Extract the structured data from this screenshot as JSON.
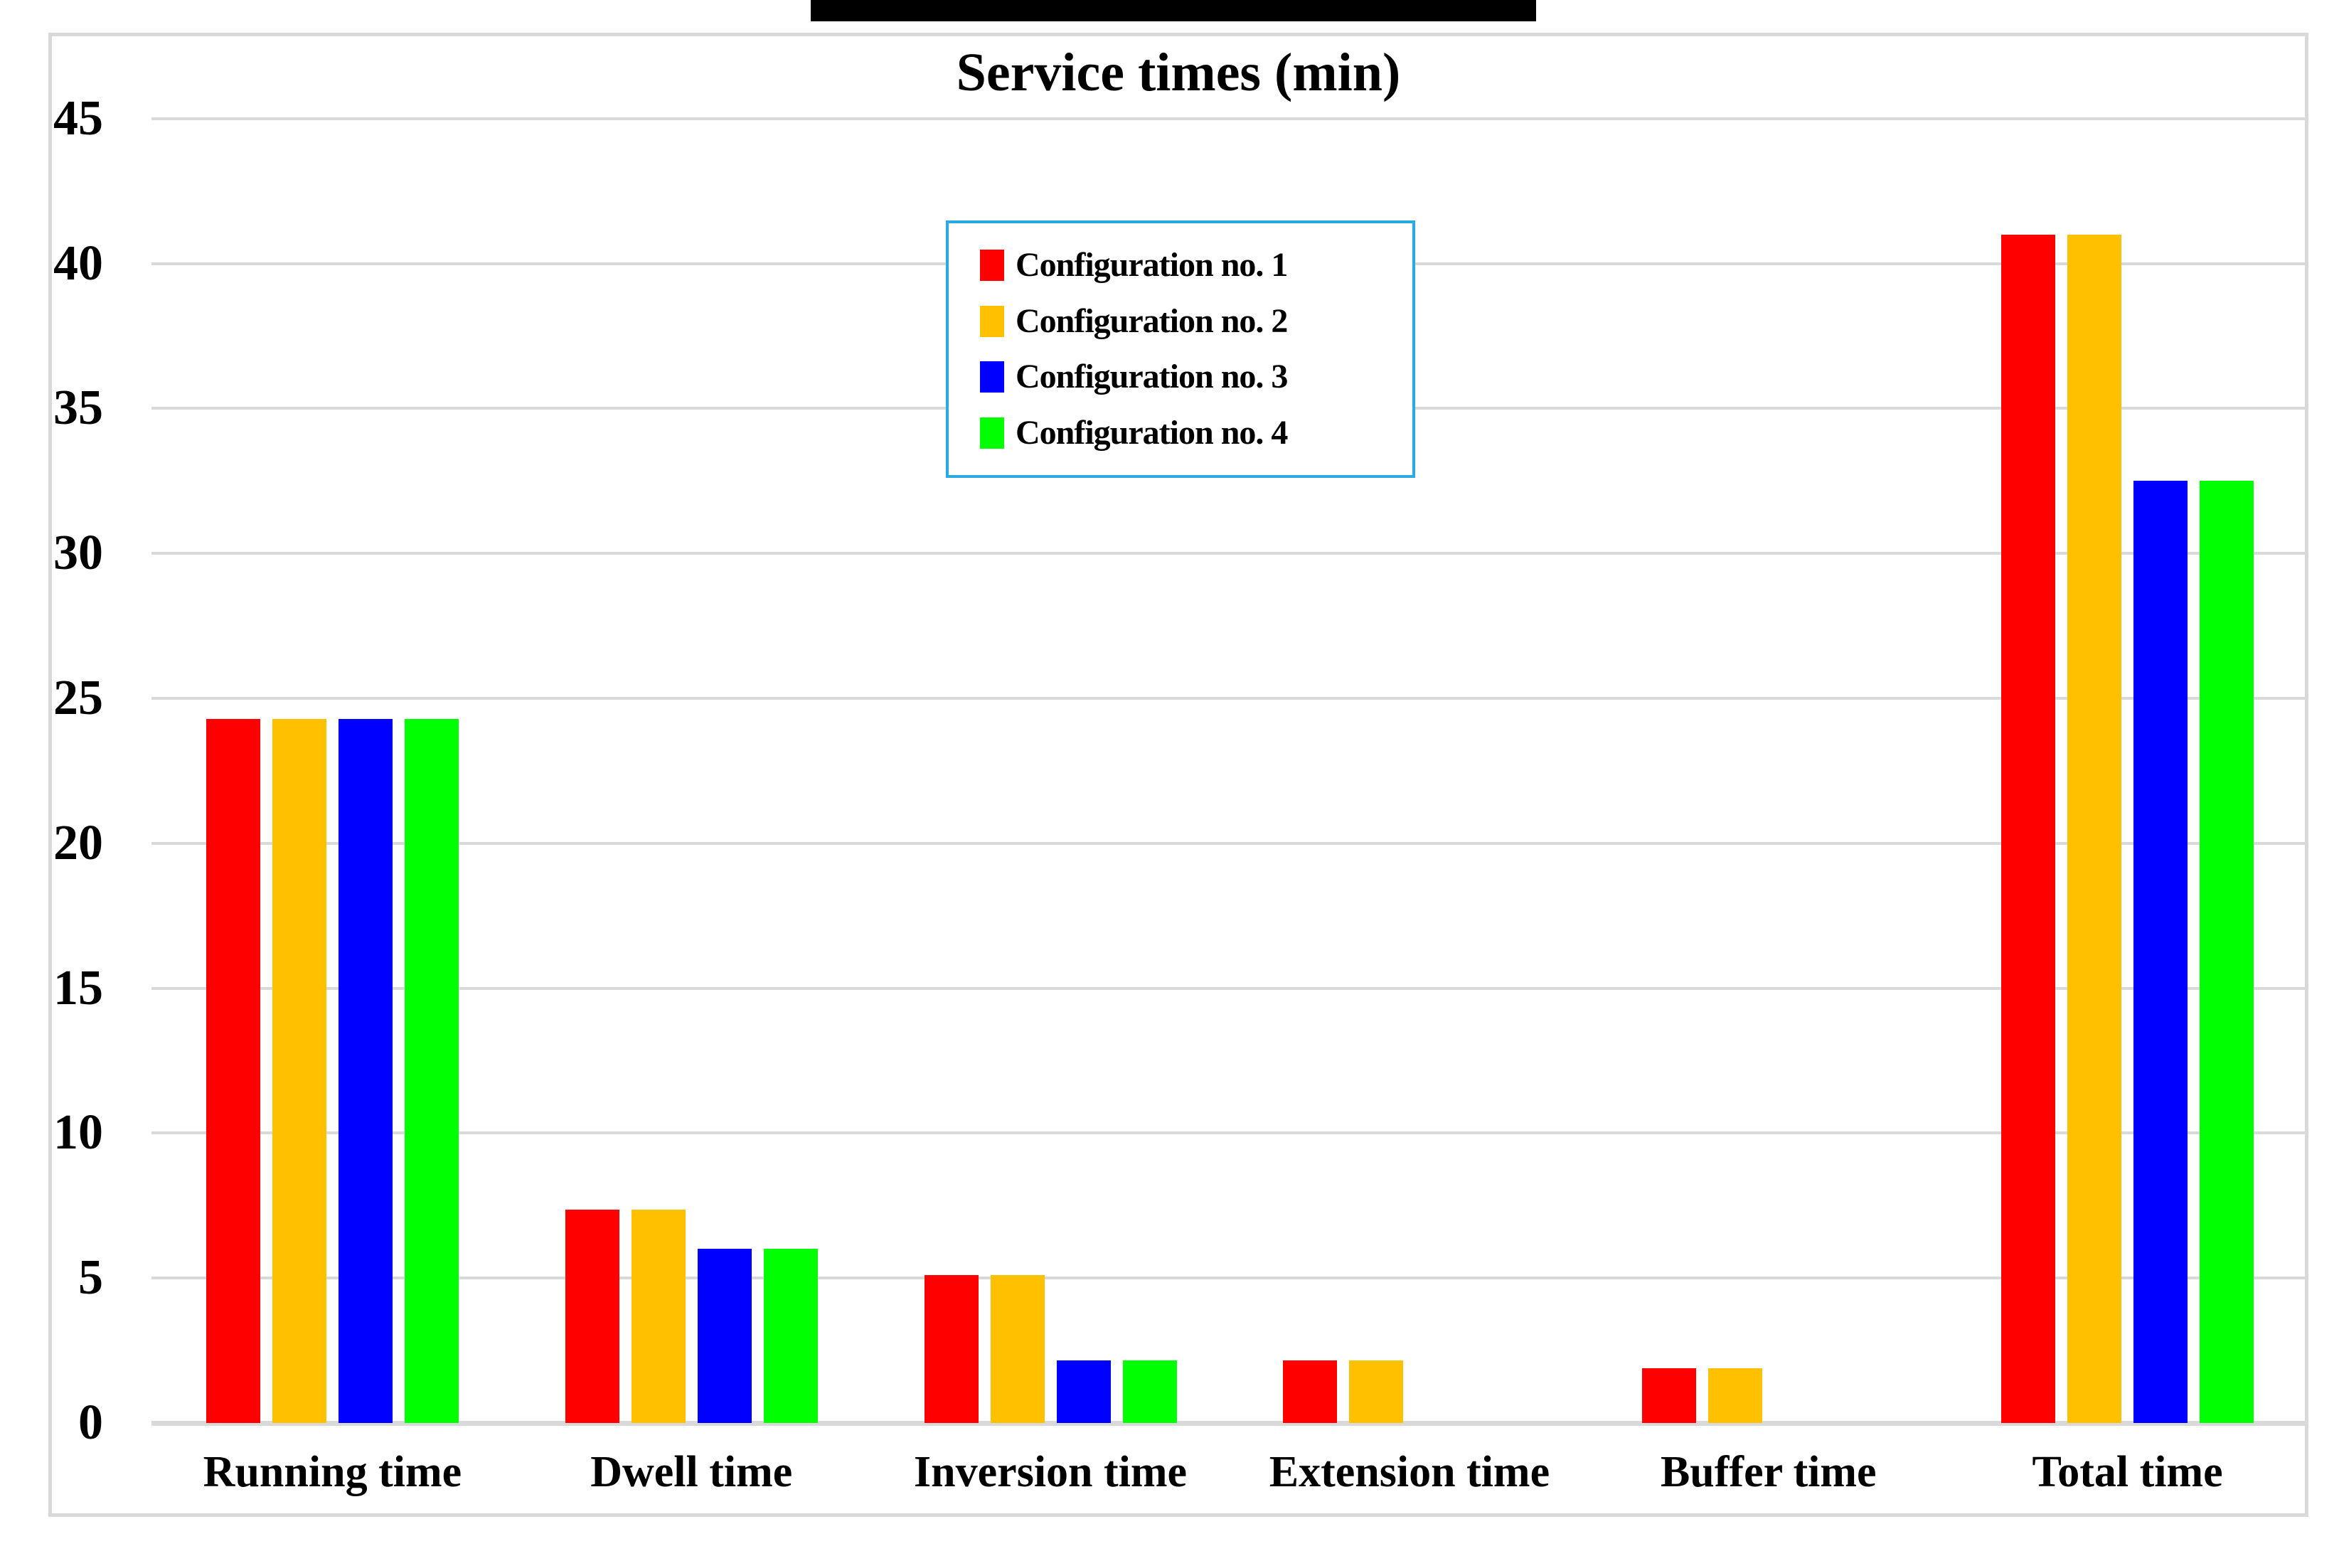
{
  "figure": {
    "title": "Service times (min)"
  },
  "chart_data": {
    "type": "bar",
    "title": "Service times (min)",
    "categories": [
      "Running time",
      "Dwell time",
      "Inversion time",
      "Extension time",
      "Buffer time",
      "Total time"
    ],
    "series": [
      {
        "name": "Configuration no. 1",
        "color": "#FF0000",
        "values": [
          24.3,
          7.35,
          5.1,
          2.15,
          1.9,
          41
        ]
      },
      {
        "name": "Configuration no. 2",
        "color": "#FFC000",
        "values": [
          24.3,
          7.35,
          5.1,
          2.15,
          1.9,
          41
        ]
      },
      {
        "name": "Configuration no. 3",
        "color": "#0000FF",
        "values": [
          24.3,
          6.0,
          2.15,
          0,
          0,
          32.5
        ]
      },
      {
        "name": "Configuration no. 4",
        "color": "#00FF00",
        "values": [
          24.3,
          6.0,
          2.15,
          0,
          0,
          32.5
        ]
      }
    ],
    "xlabel": "",
    "ylabel": "",
    "ylim": [
      0,
      45
    ],
    "yticks": [
      0,
      5,
      10,
      15,
      20,
      25,
      30,
      35,
      40,
      45
    ],
    "grid": "horizontal gridlines on",
    "legend_position": "upper center, boxed"
  },
  "colors": {
    "background": "#FFFFFF",
    "chart_border": "#D9D9D9",
    "gridline": "#D9D9D9",
    "axis_line": "#D9D9D9",
    "legend_border": "#29ABE2",
    "text": "#000000",
    "top_artifact_bar": "#000000"
  }
}
